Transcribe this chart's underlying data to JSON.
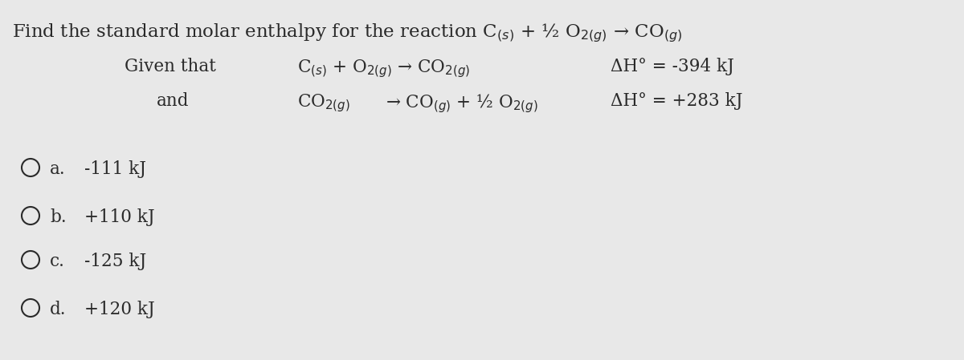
{
  "bg_color": "#e8e8e8",
  "text_color": "#2a2a2a",
  "title_line": "Find the standard molar enthalpy for the reaction C$_{(s)}$ + ½ O$_{2(g)}$ → CO$_{(g)}$",
  "given_label": "Given that",
  "and_label": "and",
  "rxn1_eq": "C$_{(s)}$ + O$_{2(g)}$ → CO$_{2(g)}$",
  "rxn1_dh": "ΔH° = -394 kJ",
  "rxn2_eq_left": "CO$_{2(g)}$",
  "rxn2_eq_right": "→ CO$_{(g)}$ + ½ O$_{2(g)}$",
  "rxn2_dh": "ΔH° = +283 kJ",
  "options": [
    {
      "label": "a.",
      "value": "-111 kJ"
    },
    {
      "label": "b.",
      "value": "+110 kJ"
    },
    {
      "label": "c.",
      "value": "-125 kJ"
    },
    {
      "label": "d.",
      "value": "+120 kJ"
    }
  ],
  "title_fontsize": 16.5,
  "body_fontsize": 15.5,
  "option_fontsize": 15.5,
  "figsize": [
    12.0,
    4.49
  ],
  "dpi": 100
}
